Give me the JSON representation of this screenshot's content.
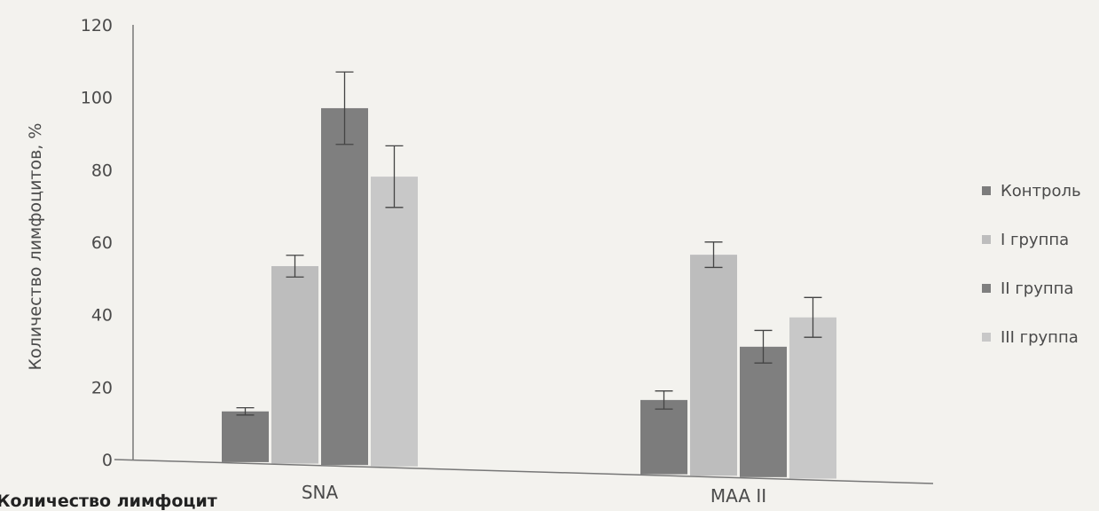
{
  "chart_data": {
    "type": "bar",
    "categories": [
      "SNA",
      "MAA II"
    ],
    "series": [
      {
        "name": "Контроль",
        "values": [
          14,
          20.5
        ],
        "errors": [
          1,
          2.5
        ],
        "color": "#7c7c7c"
      },
      {
        "name": "I группа",
        "values": [
          54.5,
          61
        ],
        "errors": [
          3,
          3.5
        ],
        "color": "#bdbdbd"
      },
      {
        "name": "II группа",
        "values": [
          98.5,
          36
        ],
        "errors": [
          10,
          4.5
        ],
        "color": "#7f7f7f"
      },
      {
        "name": "III группа",
        "values": [
          80,
          44.5
        ],
        "errors": [
          8.5,
          5.5
        ],
        "color": "#c8c8c8"
      }
    ],
    "ylabel": "Количество лимфоцитов, %",
    "ylim": [
      0,
      120
    ],
    "yticks": [
      0,
      20,
      40,
      60,
      80,
      100,
      120
    ],
    "legend_position": "right",
    "grid": false
  },
  "caption_fragment": "Количество лимфоцит"
}
